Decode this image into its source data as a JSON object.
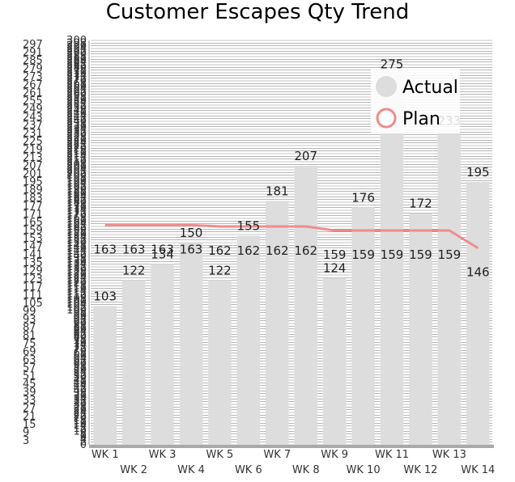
{
  "chart_data": {
    "type": "bar",
    "title": "Customer Escapes Qty Trend",
    "categories": [
      "WK 1",
      "WK 2",
      "WK 3",
      "WK 4",
      "WK 5",
      "WK 6",
      "WK 7",
      "WK 8",
      "WK 9",
      "WK 10",
      "WK 11",
      "WK 12",
      "WK 13",
      "WK 14"
    ],
    "series": [
      {
        "name": "Actual",
        "kind": "bar",
        "color": "#dddddd",
        "values": [
          103,
          122,
          134,
          150,
          122,
          155,
          181,
          207,
          124,
          176,
          275,
          172,
          233,
          195
        ]
      },
      {
        "name": "Plan",
        "kind": "line",
        "color": "#f08c8c",
        "values": [
          163,
          163,
          163,
          163,
          162,
          162,
          162,
          162,
          159,
          159,
          159,
          159,
          159,
          146
        ]
      }
    ],
    "y_axis_inner": {
      "min": 0,
      "max": 300,
      "step": 2
    },
    "y_axis_outer": {
      "min": 3,
      "max": 297,
      "step": 6
    },
    "legend": "top-right",
    "grid": true
  }
}
